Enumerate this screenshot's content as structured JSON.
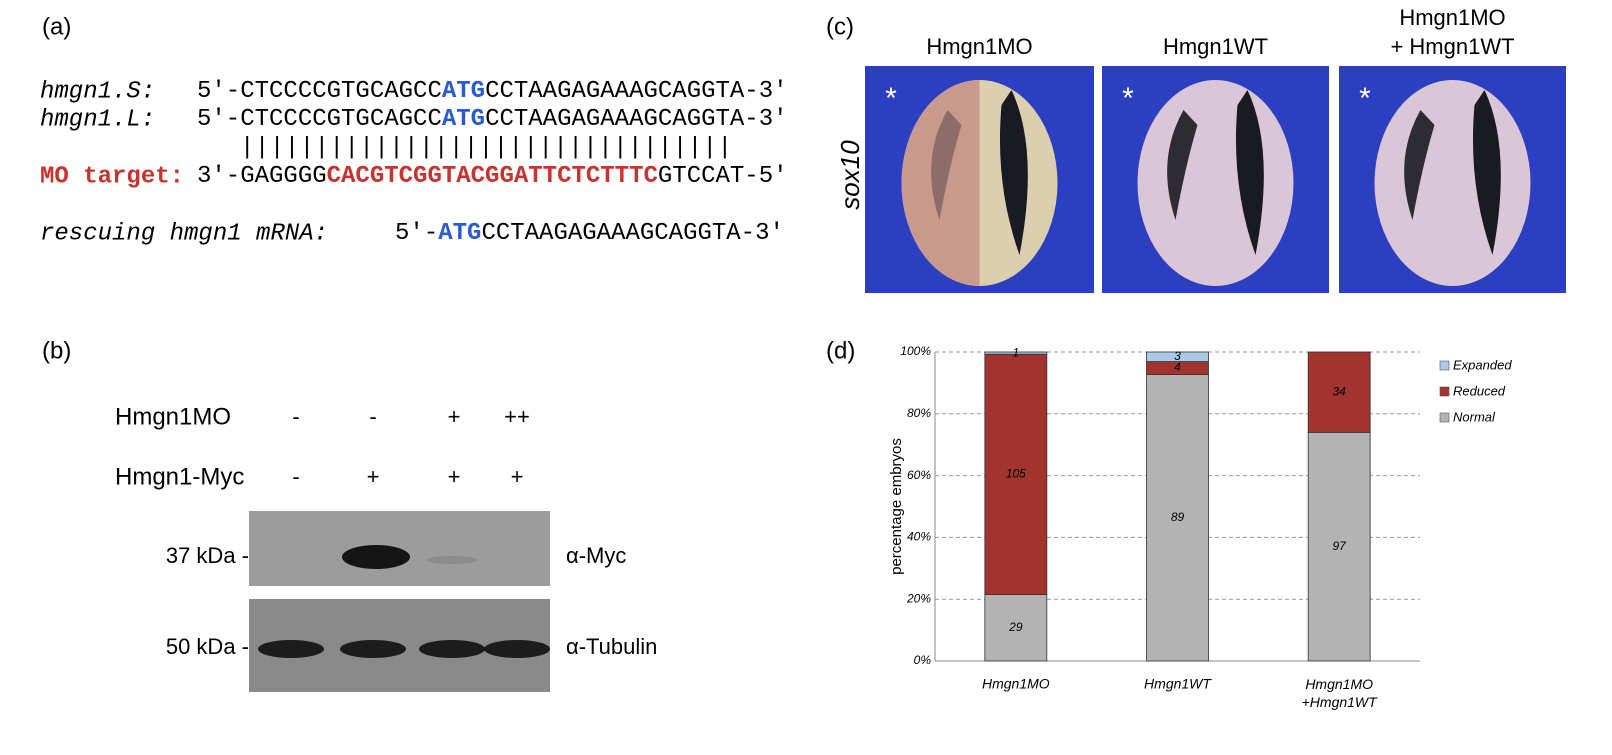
{
  "panel_a": {
    "label": "(a)",
    "rows": [
      {
        "name": "hmgn1.S:",
        "parts": [
          "5′-CTCCCCGTGCAGCC",
          "ATG",
          "CCTAAGAGAAAGCAGGTA-3′"
        ]
      },
      {
        "name": "hmgn1.L:",
        "parts": [
          "5′-CTCCCCGTGCAGCC",
          "ATG",
          "CCTAAGAGAAAGCAGGTA-3′"
        ]
      }
    ],
    "pairing": "|||||||||||||||||||||||||||||||||",
    "target": {
      "name": "MO target:",
      "parts": [
        "3′-GAGGGG",
        "CACGTCGGTACGGATTCTCTTTC",
        "GTCCAT-5′"
      ]
    },
    "rescue": {
      "name": "rescuing hmgn1 mRNA:",
      "parts": [
        "5′-",
        "ATG",
        "CCTAAGAGAAAGCAGGTA-3′"
      ]
    }
  },
  "panel_b": {
    "label": "(b)",
    "rows": [
      {
        "name": "Hmgn1MO",
        "lanes": [
          "-",
          "-",
          "+",
          "++"
        ]
      },
      {
        "name": "Hmgn1-Myc",
        "lanes": [
          "-",
          "+",
          "+",
          "+"
        ]
      }
    ],
    "blots": [
      {
        "size": "37 kDa -",
        "antibody": "α-Myc"
      },
      {
        "size": "50 kDa -",
        "antibody": "α-Tubulin"
      }
    ]
  },
  "panel_c": {
    "label": "(c)",
    "stain": "sox10",
    "marker": "*",
    "conditions": [
      [
        "Hmgn1MO"
      ],
      [
        "Hmgn1WT"
      ],
      [
        "Hmgn1MO",
        "+ Hmgn1WT"
      ]
    ]
  },
  "chart_data": {
    "type": "stacked-bar",
    "label": "(d)",
    "ylabel": "percentage embryos",
    "categories": [
      "Hmgn1MO",
      "Hmgn1WT",
      [
        "Hmgn1MO",
        "+Hmgn1WT"
      ]
    ],
    "series": [
      {
        "name": "Expanded",
        "color": "#a9c9e6",
        "values": [
          0.7,
          3.1,
          0
        ],
        "counts": [
          1,
          3,
          null
        ]
      },
      {
        "name": "Reduced",
        "color": "#a2332f",
        "values": [
          77.8,
          4.2,
          26.0
        ],
        "counts": [
          105,
          4,
          34
        ]
      },
      {
        "name": "Normal",
        "color": "#b3b3b3",
        "values": [
          21.5,
          92.7,
          74.0
        ],
        "counts": [
          29,
          89,
          97
        ]
      }
    ],
    "ylim": [
      0,
      100
    ],
    "yticks": [
      {
        "value": 0,
        "label": "0%"
      },
      {
        "value": 20,
        "label": "20%"
      },
      {
        "value": 40,
        "label": "40%"
      },
      {
        "value": 60,
        "label": "60%"
      },
      {
        "value": 80,
        "label": "80%"
      },
      {
        "value": 100,
        "label": "100%"
      }
    ],
    "grid": true,
    "legend": "right"
  }
}
